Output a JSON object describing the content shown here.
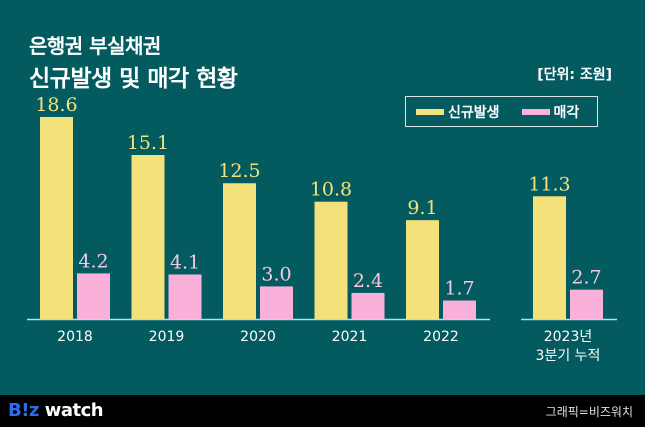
{
  "header": {
    "title_line1": "은행권 부실채권",
    "title_line2": "신규발생 및 매각 현황",
    "unit": "[단위: 조원]"
  },
  "legend": [
    {
      "label": "신규발생",
      "color": "#f3e27c"
    },
    {
      "label": "매각",
      "color": "#f9b1d9"
    }
  ],
  "colors": {
    "background": "#035a5f",
    "baseline": "#a9e3e8",
    "new_value_text": "#f3e27c",
    "sale_value_text": "#f5c9e2",
    "axis_text": "#ffffff"
  },
  "chart_data": {
    "type": "bar",
    "title": "은행권 부실채권 신규발생 및 매각 현황",
    "unit": "조원",
    "categories": [
      "2018",
      "2019",
      "2020",
      "2021",
      "2022",
      "2023년|3분기 누적"
    ],
    "category_lines": [
      [
        "2018"
      ],
      [
        "2019"
      ],
      [
        "2020"
      ],
      [
        "2021"
      ],
      [
        "2022"
      ],
      [
        "2023년",
        "3분기 누적"
      ]
    ],
    "series": [
      {
        "name": "신규발생",
        "values": [
          18.6,
          15.1,
          12.5,
          10.8,
          9.1,
          11.3
        ],
        "labels": [
          "18.6",
          "15.1",
          "12.5",
          "10.8",
          "9.1",
          "11.3"
        ]
      },
      {
        "name": "매각",
        "values": [
          4.2,
          4.1,
          3.0,
          2.4,
          1.7,
          2.7
        ],
        "labels": [
          "4.2",
          "4.1",
          "3.0",
          "2.4",
          "1.7",
          "2.7"
        ]
      }
    ],
    "ylim": [
      0,
      19
    ],
    "grid": false,
    "legend_position": "top-right",
    "xlabel": "",
    "ylabel": ""
  },
  "footer": {
    "logo_biz": "B!z",
    "logo_watch": "watch",
    "credit": "그래픽=비즈워치"
  }
}
